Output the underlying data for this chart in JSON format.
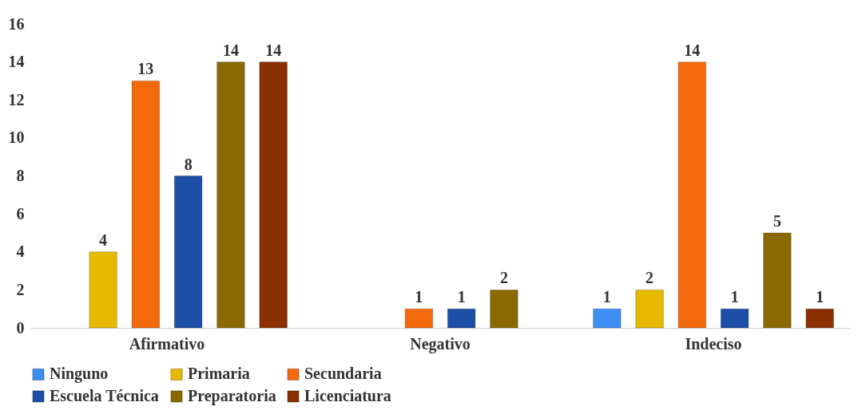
{
  "chart_data": {
    "type": "bar",
    "categories": [
      "Afirmativo",
      "Negativo",
      "Indeciso"
    ],
    "series": [
      {
        "name": "Ninguno",
        "color": "#3d8ef0",
        "values": [
          null,
          null,
          1
        ]
      },
      {
        "name": "Primaria",
        "color": "#e6b800",
        "values": [
          4,
          null,
          2
        ]
      },
      {
        "name": "Secundaria",
        "color": "#f26a0c",
        "values": [
          13,
          1,
          14
        ]
      },
      {
        "name": "Escuela Técnica",
        "color": "#1d4fa6",
        "values": [
          8,
          1,
          1
        ]
      },
      {
        "name": "Preparatoria",
        "color": "#8a6a00",
        "values": [
          14,
          2,
          5
        ]
      },
      {
        "name": "Licenciatura",
        "color": "#8a3000",
        "values": [
          14,
          null,
          1
        ]
      }
    ],
    "ylim": [
      0,
      16
    ],
    "yticks": [
      0,
      2,
      4,
      6,
      8,
      10,
      12,
      14,
      16
    ],
    "grid": false,
    "legend": "bottom",
    "data_labels": true
  }
}
